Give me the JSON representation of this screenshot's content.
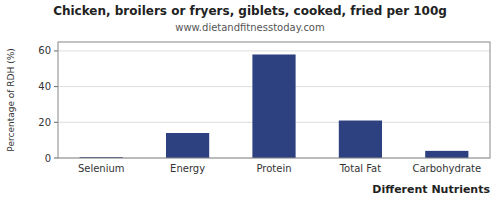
{
  "chart_data": {
    "type": "bar",
    "title": "Chicken, broilers or fryers, giblets, cooked, fried per 100g",
    "subtitle": "www.dietandfitnesstoday.com",
    "xlabel": "Different Nutrients",
    "ylabel": "Percentage of RDH (%)",
    "categories": [
      "Selenium",
      "Energy",
      "Protein",
      "Total Fat",
      "Carbohydrate"
    ],
    "values": [
      0.5,
      14,
      58,
      21,
      4
    ],
    "color": "#2d4080",
    "ylim": [
      0,
      65
    ],
    "yticks": [
      0,
      20,
      40,
      60
    ],
    "grid": true
  }
}
